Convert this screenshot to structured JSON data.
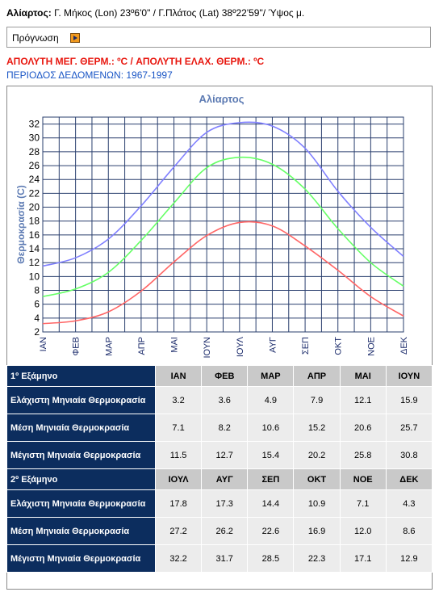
{
  "location": {
    "name": "Αλίαρτος:",
    "coords_text": "Γ. Μήκος (Lon) 23º6'0\" / Γ.Πλάτος (Lat) 38º22'59\"/ Ύψος μ."
  },
  "forecast": {
    "label": "Πρόγνωση",
    "icon": "arrow-right-icon"
  },
  "abs_temps": "ΑΠΟΛΥΤΗ ΜΕΓ. ΘΕΡΜ.: ºC / ΑΠΟΛΥΤΗ ΕΛΑΧ. ΘΕΡΜ.: ºC",
  "period": "ΠΕΡΙΟΔΟΣ ΔΕΔΟΜΕΝΩΝ: 1967-1997",
  "colors": {
    "max": "#8080ff",
    "mean": "#66ff66",
    "min": "#ff6666",
    "grid": "#2a3f6e",
    "header": "#0c2d5e",
    "title": "#5d7bb3"
  },
  "chart_data": {
    "type": "line",
    "title": "Αλίαρτος",
    "ylabel": "Θερμοκρασία (C)",
    "xlabel": "",
    "categories": [
      "ΙΑΝ",
      "ΦΕΒ",
      "ΜΑΡ",
      "ΑΠΡ",
      "ΜΑΙ",
      "ΙΟΥΝ",
      "ΙΟΥΛ",
      "ΑΥΓ",
      "ΣΕΠ",
      "ΟΚΤ",
      "ΝΟΕ",
      "ΔΕΚ"
    ],
    "ylim": [
      2,
      33
    ],
    "yticks": [
      2,
      4,
      6,
      8,
      10,
      12,
      14,
      16,
      18,
      20,
      22,
      24,
      26,
      28,
      30,
      32
    ],
    "grid": true,
    "series": [
      {
        "key": "max",
        "values": [
          11.5,
          12.7,
          15.4,
          20.2,
          25.8,
          30.8,
          32.2,
          31.7,
          28.5,
          22.3,
          17.1,
          12.9
        ]
      },
      {
        "key": "mean",
        "values": [
          7.1,
          8.2,
          10.6,
          15.2,
          20.6,
          25.7,
          27.2,
          26.2,
          22.6,
          16.9,
          12.0,
          8.6
        ]
      },
      {
        "key": "min",
        "values": [
          3.2,
          3.6,
          4.9,
          7.9,
          12.1,
          15.9,
          17.8,
          17.3,
          14.4,
          10.9,
          7.1,
          4.3
        ]
      }
    ]
  },
  "table": {
    "sem1": {
      "label": "1º Εξάμηνο",
      "months": [
        "ΙΑΝ",
        "ΦΕΒ",
        "ΜΑΡ",
        "ΑΠΡ",
        "ΜΑΙ",
        "ΙΟΥΝ"
      ],
      "rows": [
        {
          "label": "Ελάχιστη Μηνιαία Θερμοκρασία",
          "values": [
            "3.2",
            "3.6",
            "4.9",
            "7.9",
            "12.1",
            "15.9"
          ]
        },
        {
          "label": "Μέση Μηνιαία Θερμοκρασία",
          "values": [
            "7.1",
            "8.2",
            "10.6",
            "15.2",
            "20.6",
            "25.7"
          ]
        },
        {
          "label": "Μέγιστη Μηνιαία Θερμοκρασία",
          "values": [
            "11.5",
            "12.7",
            "15.4",
            "20.2",
            "25.8",
            "30.8"
          ]
        }
      ]
    },
    "sem2": {
      "label": "2º Εξάμηνο",
      "months": [
        "ΙΟΥΛ",
        "ΑΥΓ",
        "ΣΕΠ",
        "ΟΚΤ",
        "ΝΟΕ",
        "ΔΕΚ"
      ],
      "rows": [
        {
          "label": "Ελάχιστη Μηνιαία Θερμοκρασία",
          "values": [
            "17.8",
            "17.3",
            "14.4",
            "10.9",
            "7.1",
            "4.3"
          ]
        },
        {
          "label": "Μέση Μηνιαία Θερμοκρασία",
          "values": [
            "27.2",
            "26.2",
            "22.6",
            "16.9",
            "12.0",
            "8.6"
          ]
        },
        {
          "label": "Μέγιστη Μηνιαία Θερμοκρασία",
          "values": [
            "32.2",
            "31.7",
            "28.5",
            "22.3",
            "17.1",
            "12.9"
          ]
        }
      ]
    }
  }
}
